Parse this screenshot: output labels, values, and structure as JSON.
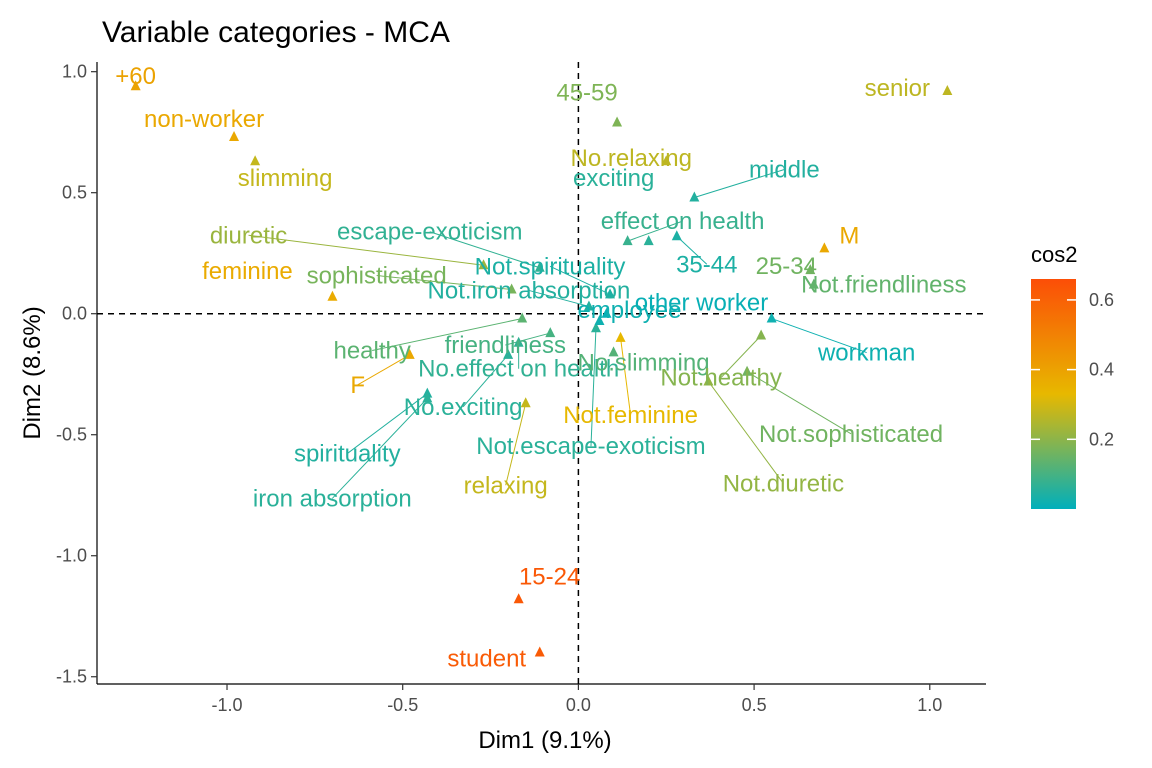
{
  "chart_data": {
    "type": "scatter",
    "title": "Variable categories - MCA",
    "xlabel": "Dim1 (9.1%)",
    "ylabel": "Dim2 (8.6%)",
    "xlim": [
      -1.37,
      1.16
    ],
    "ylim": [
      -1.53,
      1.04
    ],
    "xticks": [
      -1.0,
      -0.5,
      0.0,
      0.5,
      1.0
    ],
    "xtick_labels": [
      "-1.0",
      "-0.5",
      "0.0",
      "0.5",
      "1.0"
    ],
    "yticks": [
      -1.5,
      -1.0,
      -0.5,
      0.0,
      0.5,
      1.0
    ],
    "ytick_labels": [
      "-1.5",
      "-1.0",
      "-0.5",
      "0.0",
      "0.5",
      "1.0"
    ],
    "grid": false,
    "reference_lines": {
      "x": 0,
      "y": 0,
      "style": "dashed"
    },
    "legend": {
      "title": "cos2",
      "position": "right",
      "gradient": [
        "#00AFBB",
        "#E7B800",
        "#FC4E07"
      ],
      "range": [
        0.0,
        0.66
      ],
      "ticks": [
        0.2,
        0.4,
        0.6
      ],
      "tick_labels": [
        "0.2",
        "0.4",
        "0.6"
      ]
    },
    "points": [
      {
        "label": "+60",
        "x": -1.26,
        "y": 0.94,
        "cos2": 0.4
      },
      {
        "label": "non-worker",
        "x": -0.98,
        "y": 0.73,
        "cos2": 0.38
      },
      {
        "label": "slimming",
        "x": -0.92,
        "y": 0.63,
        "cos2": 0.28
      },
      {
        "label": "feminine",
        "x": -0.7,
        "y": 0.07,
        "cos2": 0.37
      },
      {
        "label": "F",
        "x": -0.48,
        "y": -0.17,
        "cos2": 0.38
      },
      {
        "label": "spirituality",
        "x": -0.43,
        "y": -0.33,
        "cos2": 0.05
      },
      {
        "label": "iron absorption",
        "x": -0.43,
        "y": -0.35,
        "cos2": 0.06
      },
      {
        "label": "diuretic",
        "x": -0.27,
        "y": 0.2,
        "cos2": 0.22
      },
      {
        "label": "sophisticated",
        "x": -0.19,
        "y": 0.1,
        "cos2": 0.17
      },
      {
        "label": "healthy",
        "x": -0.16,
        "y": -0.02,
        "cos2": 0.13
      },
      {
        "label": "friendliness",
        "x": -0.08,
        "y": -0.08,
        "cos2": 0.1
      },
      {
        "label": "No.exciting",
        "x": -0.2,
        "y": -0.17,
        "cos2": 0.06
      },
      {
        "label": "escape-exoticism",
        "x": -0.11,
        "y": 0.19,
        "cos2": 0.07
      },
      {
        "label": "Not.escape-exoticism",
        "x": 0.05,
        "y": -0.06,
        "cos2": 0.06
      },
      {
        "label": "Not.iron absorption",
        "x": 0.03,
        "y": 0.03,
        "cos2": 0.05
      },
      {
        "label": "No.effect on health",
        "x": -0.17,
        "y": -0.12,
        "cos2": 0.07
      },
      {
        "label": "relaxing",
        "x": -0.15,
        "y": -0.37,
        "cos2": 0.28
      },
      {
        "label": "Not.feminine",
        "x": 0.12,
        "y": -0.1,
        "cos2": 0.33
      },
      {
        "label": "Not.spirituality",
        "x": 0.09,
        "y": 0.08,
        "cos2": 0.04
      },
      {
        "label": "effect on health",
        "x": 0.14,
        "y": 0.3,
        "cos2": 0.08
      },
      {
        "label": "exciting",
        "x": 0.2,
        "y": 0.3,
        "cos2": 0.06
      },
      {
        "label": "employee",
        "x": 0.06,
        "y": -0.03,
        "cos2": 0.02
      },
      {
        "label": "other worker",
        "x": 0.08,
        "y": 0.0,
        "cos2": 0.01
      },
      {
        "label": "No.slimming",
        "x": 0.1,
        "y": -0.16,
        "cos2": 0.12
      },
      {
        "label": "45-59",
        "x": 0.11,
        "y": 0.79,
        "cos2": 0.18
      },
      {
        "label": "No.relaxing",
        "x": 0.25,
        "y": 0.63,
        "cos2": 0.27
      },
      {
        "label": "middle",
        "x": 0.33,
        "y": 0.48,
        "cos2": 0.05
      },
      {
        "label": "35-44",
        "x": 0.28,
        "y": 0.32,
        "cos2": 0.04
      },
      {
        "label": "Not.healthy",
        "x": 0.52,
        "y": -0.09,
        "cos2": 0.19
      },
      {
        "label": "Not.diuretic",
        "x": 0.37,
        "y": -0.28,
        "cos2": 0.21
      },
      {
        "label": "Not.sophisticated",
        "x": 0.48,
        "y": -0.24,
        "cos2": 0.16
      },
      {
        "label": "workman",
        "x": 0.55,
        "y": -0.02,
        "cos2": 0.02
      },
      {
        "label": "25-34",
        "x": 0.66,
        "y": 0.18,
        "cos2": 0.16
      },
      {
        "label": "Not.friendliness",
        "x": 0.67,
        "y": 0.12,
        "cos2": 0.14
      },
      {
        "label": "M",
        "x": 0.7,
        "y": 0.27,
        "cos2": 0.38
      },
      {
        "label": "senior",
        "x": 1.05,
        "y": 0.92,
        "cos2": 0.27
      },
      {
        "label": "15-24",
        "x": -0.17,
        "y": -1.18,
        "cos2": 0.63
      },
      {
        "label": "student",
        "x": -0.11,
        "y": -1.4,
        "cos2": 0.62
      }
    ]
  }
}
